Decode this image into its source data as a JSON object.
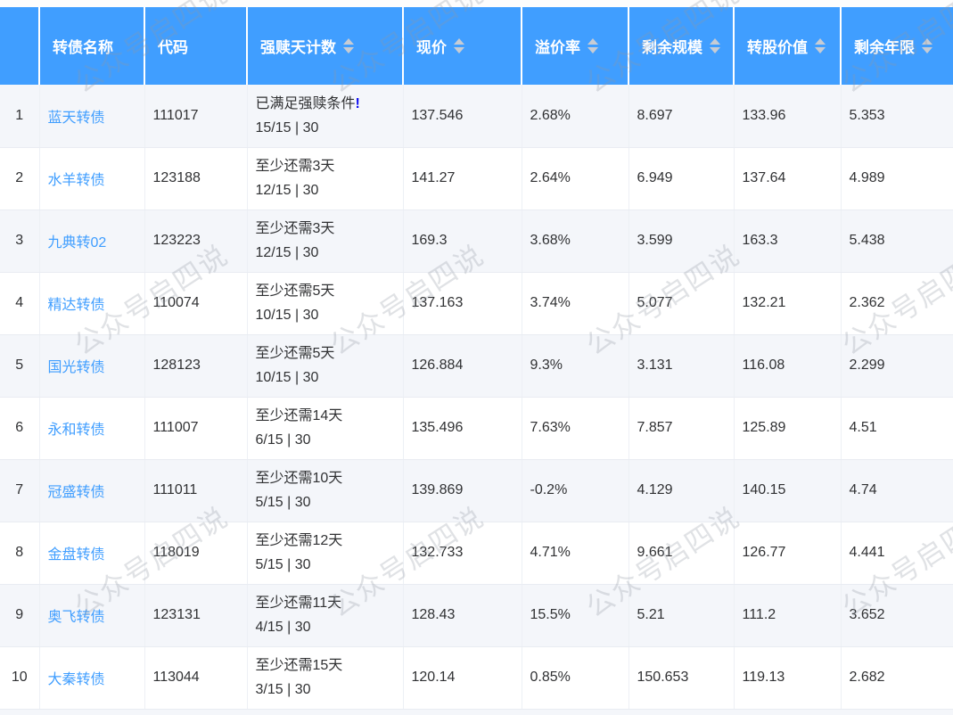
{
  "watermark": {
    "text": "公众号启四说"
  },
  "colors": {
    "header_bg": "#409eff",
    "header_text": "#ffffff",
    "link_blue": "#409eff",
    "alert_mark_blue": "#0b0bf0",
    "striped_row_bg": "#f4f6fa",
    "sort_icon_gray": "#c7ccd4",
    "body_text": "#303133"
  },
  "table": {
    "columns": [
      {
        "label": "",
        "sortable": false
      },
      {
        "label": "转债名称",
        "sortable": false
      },
      {
        "label": "代码",
        "sortable": false
      },
      {
        "label": "强赎天计数",
        "sortable": true
      },
      {
        "label": "现价",
        "sortable": true
      },
      {
        "label": "溢价率",
        "sortable": true
      },
      {
        "label": "剩余规模",
        "sortable": true
      },
      {
        "label": "转股价值",
        "sortable": true
      },
      {
        "label": "剩余年限",
        "sortable": true
      }
    ],
    "rows": [
      {
        "index": "1",
        "name": "蓝天转债",
        "code": "111017",
        "redeem_status": "已满足强赎条件",
        "redeem_mark": "!",
        "redeem_progress": "15/15 | 30",
        "price": "137.546",
        "premium": "2.68%",
        "remaining_size": "8.697",
        "conversion_value": "133.96",
        "remaining_years": "5.353"
      },
      {
        "index": "2",
        "name": "水羊转债",
        "code": "123188",
        "redeem_status": "至少还需3天",
        "redeem_mark": "",
        "redeem_progress": "12/15 | 30",
        "price": "141.27",
        "premium": "2.64%",
        "remaining_size": "6.949",
        "conversion_value": "137.64",
        "remaining_years": "4.989"
      },
      {
        "index": "3",
        "name": "九典转02",
        "code": "123223",
        "redeem_status": "至少还需3天",
        "redeem_mark": "",
        "redeem_progress": "12/15 | 30",
        "price": "169.3",
        "premium": "3.68%",
        "remaining_size": "3.599",
        "conversion_value": "163.3",
        "remaining_years": "5.438"
      },
      {
        "index": "4",
        "name": "精达转债",
        "code": "110074",
        "redeem_status": "至少还需5天",
        "redeem_mark": "",
        "redeem_progress": "10/15 | 30",
        "price": "137.163",
        "premium": "3.74%",
        "remaining_size": "5.077",
        "conversion_value": "132.21",
        "remaining_years": "2.362"
      },
      {
        "index": "5",
        "name": "国光转债",
        "code": "128123",
        "redeem_status": "至少还需5天",
        "redeem_mark": "",
        "redeem_progress": "10/15 | 30",
        "price": "126.884",
        "premium": "9.3%",
        "remaining_size": "3.131",
        "conversion_value": "116.08",
        "remaining_years": "2.299"
      },
      {
        "index": "6",
        "name": "永和转债",
        "code": "111007",
        "redeem_status": "至少还需14天",
        "redeem_mark": "",
        "redeem_progress": "6/15 | 30",
        "price": "135.496",
        "premium": "7.63%",
        "remaining_size": "7.857",
        "conversion_value": "125.89",
        "remaining_years": "4.51"
      },
      {
        "index": "7",
        "name": "冠盛转债",
        "code": "111011",
        "redeem_status": "至少还需10天",
        "redeem_mark": "",
        "redeem_progress": "5/15 | 30",
        "price": "139.869",
        "premium": "-0.2%",
        "remaining_size": "4.129",
        "conversion_value": "140.15",
        "remaining_years": "4.74"
      },
      {
        "index": "8",
        "name": "金盘转债",
        "code": "118019",
        "redeem_status": "至少还需12天",
        "redeem_mark": "",
        "redeem_progress": "5/15 | 30",
        "price": "132.733",
        "premium": "4.71%",
        "remaining_size": "9.661",
        "conversion_value": "126.77",
        "remaining_years": "4.441"
      },
      {
        "index": "9",
        "name": "奥飞转债",
        "code": "123131",
        "redeem_status": "至少还需11天",
        "redeem_mark": "",
        "redeem_progress": "4/15 | 30",
        "price": "128.43",
        "premium": "15.5%",
        "remaining_size": "5.21",
        "conversion_value": "111.2",
        "remaining_years": "3.652"
      },
      {
        "index": "10",
        "name": "大秦转债",
        "code": "113044",
        "redeem_status": "至少还需15天",
        "redeem_mark": "",
        "redeem_progress": "3/15 | 30",
        "price": "120.14",
        "premium": "0.85%",
        "remaining_size": "150.653",
        "conversion_value": "119.13",
        "remaining_years": "2.682"
      }
    ]
  }
}
